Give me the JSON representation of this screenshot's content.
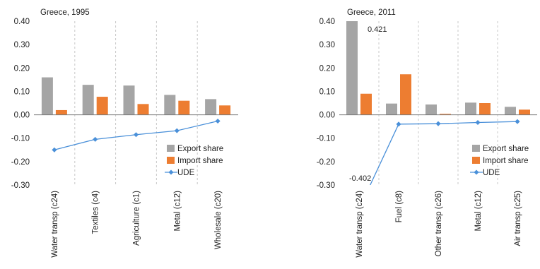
{
  "chart_data": [
    {
      "type": "bar",
      "title": "Greece, 1995",
      "categories": [
        "Water transp (c24)",
        "Textiles (c4)",
        "Agriculture (c1)",
        "Metal (c12)",
        "Wholesale (c20)"
      ],
      "series": [
        {
          "name": "Export share",
          "type": "bar",
          "color": "#a5a5a5",
          "values": [
            0.16,
            0.128,
            0.125,
            0.085,
            0.067
          ]
        },
        {
          "name": "Import share",
          "type": "bar",
          "color": "#ed7d31",
          "values": [
            0.02,
            0.077,
            0.046,
            0.06,
            0.04
          ]
        },
        {
          "name": "UDE",
          "type": "line",
          "color": "#4a90d9",
          "values": [
            -0.15,
            -0.105,
            -0.085,
            -0.068,
            -0.027
          ]
        }
      ],
      "yticks": [
        "0.40",
        "0.30",
        "0.20",
        "0.10",
        "0.00",
        "-0.10",
        "-0.20",
        "-0.30"
      ],
      "ylim": [
        -0.3,
        0.4
      ],
      "grid": "vertical dashed between categories",
      "legend": "bottom-right",
      "annotations": []
    },
    {
      "type": "bar",
      "title": "Greece, 2011",
      "categories": [
        "Water transp (c24)",
        "Fuel (c8)",
        "Other transp (c26)",
        "Metal (c12)",
        "Air transp (c25)"
      ],
      "series": [
        {
          "name": "Export share",
          "type": "bar",
          "color": "#a5a5a5",
          "values": [
            0.421,
            0.048,
            0.044,
            0.052,
            0.034
          ]
        },
        {
          "name": "Import share",
          "type": "bar",
          "color": "#ed7d31",
          "values": [
            0.09,
            0.173,
            0.004,
            0.05,
            0.022
          ]
        },
        {
          "name": "UDE",
          "type": "line",
          "color": "#4a90d9",
          "values": [
            -0.402,
            -0.04,
            -0.038,
            -0.033,
            -0.029
          ]
        }
      ],
      "yticks": [
        "0.40",
        "0.30",
        "0.20",
        "0.10",
        "0.00",
        "-0.10",
        "-0.20",
        "-0.30"
      ],
      "ylim": [
        -0.3,
        0.4
      ],
      "grid": "vertical dashed between categories",
      "legend": "bottom-right",
      "annotations": [
        "0.421",
        "-0.402"
      ]
    }
  ]
}
